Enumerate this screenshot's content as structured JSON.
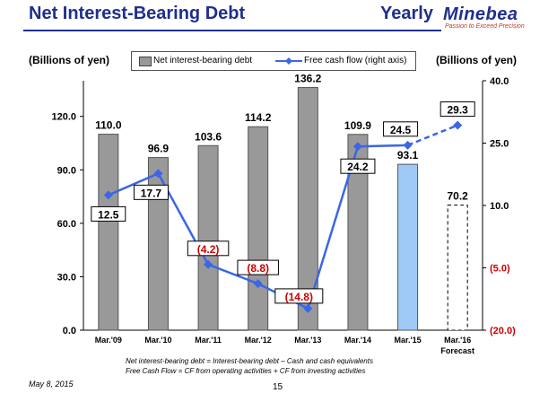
{
  "header": {
    "title": "Net Interest-Bearing Debt",
    "period": "Yearly",
    "brand": "Minebea",
    "tagline": "Passion to Exceed Precision"
  },
  "units": {
    "left": "(Billions of yen)",
    "right": "(Billions of yen)"
  },
  "colors": {
    "bar": "#999999",
    "bar_plan": "#9fcaf7",
    "line": "#3a66e8",
    "negative": "#cc0000",
    "title": "#1f2f8c"
  },
  "chart_data": {
    "type": "bar",
    "title": "Net Interest-Bearing Debt",
    "categories": [
      "Mar.'09",
      "Mar.'10",
      "Mar.'11",
      "Mar.'12",
      "Mar.'13",
      "Mar.'14",
      "Mar.'15",
      "Mar.'16"
    ],
    "category_sub": [
      "",
      "",
      "",
      "",
      "",
      "",
      "",
      "Forecast"
    ],
    "series": [
      {
        "name": "Net interest-bearing debt",
        "axis": "left",
        "type": "bar",
        "values": [
          110.0,
          96.9,
          103.6,
          114.2,
          136.2,
          109.9,
          93.1,
          70.2
        ],
        "labels": [
          "110.0",
          "96.9",
          "103.6",
          "114.2",
          "136.2",
          "109.9",
          "93.1",
          "70.2"
        ]
      },
      {
        "name": "Free cash flow (right axis)",
        "axis": "right",
        "type": "line",
        "values": [
          12.5,
          17.7,
          -4.2,
          -8.8,
          -14.8,
          24.2,
          24.5,
          29.3
        ],
        "labels": [
          "12.5",
          "17.7",
          "(4.2)",
          "(8.8)",
          "(14.8)",
          "24.2",
          "24.5",
          "29.3"
        ]
      }
    ],
    "y_left": {
      "min": 0,
      "max": 140,
      "ticks": [
        0,
        30,
        60,
        90,
        120
      ],
      "tick_labels": [
        "0.0",
        "30.0",
        "60.0",
        "90.0",
        "120.0"
      ]
    },
    "y_right": {
      "min": -20,
      "max": 40,
      "ticks": [
        -20,
        -5,
        10,
        25,
        40
      ],
      "tick_labels": [
        "(20.0)",
        "(5.0)",
        "10.0",
        "25.0",
        "40.0"
      ]
    },
    "legend": "top-center",
    "grid": false
  },
  "footnote": {
    "line1": "Net interest-bearing debt = Interest-bearing debt – Cash and cash equivalents",
    "line2": "Free Cash Flow = CF from operating activities + CF from investing activities"
  },
  "date": "May 8, 2015",
  "page": "15"
}
